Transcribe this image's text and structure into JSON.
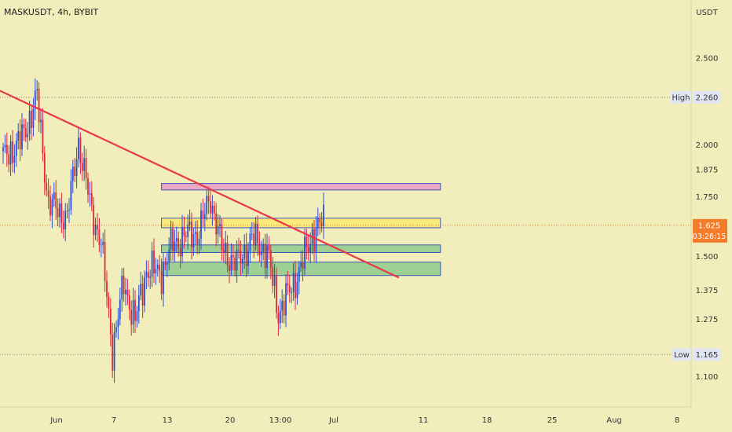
{
  "header": {
    "symbol_title": "MASKUSDT, 4h, BYBIT"
  },
  "colors": {
    "background": "#f1eebb",
    "candle_up": "#2a4fd6",
    "candle_down": "#e0283a",
    "trendline": "#e8384a",
    "resistance_zone": "#e9a1c4",
    "supply_zone": "#fbe877",
    "demand_zone": "#95cc8f",
    "zone_border": "#3b58b8",
    "current_price_badge": "#f57c2a",
    "label_box": "#e2e6f3"
  },
  "chart_data": {
    "type": "candlestick",
    "title": "MASKUSDT, 4h, BYBIT",
    "currency_label": "USDT",
    "y_scale": "log",
    "grid": false,
    "x_tick_labels": [
      "Jun",
      "7",
      "13",
      "20",
      "13:00",
      "Jul",
      "11",
      "18",
      "25",
      "Aug",
      "8"
    ],
    "y_tick_labels": [
      "2.500",
      "2.000",
      "1.875",
      "1.750",
      "1.500",
      "1.375",
      "1.275",
      "1.100"
    ],
    "y_ticks": [
      2.5,
      2.0,
      1.875,
      1.75,
      1.5,
      1.375,
      1.275,
      1.1
    ],
    "ylim": [
      1.06,
      2.8
    ],
    "high": {
      "label": "High",
      "value": "2.260",
      "price": 2.26
    },
    "low": {
      "label": "Low",
      "value": "1.165",
      "price": 1.165
    },
    "current_price": {
      "value": "1.625",
      "countdown": "03:26:15",
      "price": 1.625
    },
    "anchor_points": [
      {
        "t": 0,
        "price": 1.93
      },
      {
        "t": 10,
        "price": 2.03
      },
      {
        "t": 18,
        "price": 2.26
      },
      {
        "t": 24,
        "price": 1.72
      },
      {
        "t": 34,
        "price": 1.66
      },
      {
        "t": 40,
        "price": 2.02
      },
      {
        "t": 46,
        "price": 1.72
      },
      {
        "t": 52,
        "price": 1.55
      },
      {
        "t": 58,
        "price": 1.18
      },
      {
        "t": 64,
        "price": 1.4
      },
      {
        "t": 70,
        "price": 1.27
      },
      {
        "t": 76,
        "price": 1.45
      },
      {
        "t": 84,
        "price": 1.44
      },
      {
        "t": 90,
        "price": 1.55
      },
      {
        "t": 96,
        "price": 1.58
      },
      {
        "t": 104,
        "price": 1.6
      },
      {
        "t": 110,
        "price": 1.75
      },
      {
        "t": 116,
        "price": 1.53
      },
      {
        "t": 124,
        "price": 1.47
      },
      {
        "t": 132,
        "price": 1.57
      },
      {
        "t": 140,
        "price": 1.52
      },
      {
        "t": 146,
        "price": 1.3
      },
      {
        "t": 152,
        "price": 1.37
      },
      {
        "t": 158,
        "price": 1.46
      },
      {
        "t": 164,
        "price": 1.59
      },
      {
        "t": 170,
        "price": 1.64
      }
    ],
    "candle_count": 171,
    "trendline": {
      "start": {
        "t": -17,
        "price": 2.38
      },
      "end": {
        "t": 210,
        "price": 1.42
      }
    },
    "zones": [
      {
        "name": "resistance",
        "t_start": 84,
        "t_end": 232,
        "top": 1.81,
        "bottom": 1.78,
        "color": "#e9a1c4"
      },
      {
        "name": "supply",
        "t_start": 84,
        "t_end": 232,
        "top": 1.655,
        "bottom": 1.615,
        "color": "#fbe877"
      },
      {
        "name": "demand-upper",
        "t_start": 84,
        "t_end": 232,
        "top": 1.545,
        "bottom": 1.515,
        "color": "#95cc8f"
      },
      {
        "name": "demand-lower",
        "t_start": 84,
        "t_end": 232,
        "top": 1.478,
        "bottom": 1.428,
        "color": "#95cc8f"
      }
    ]
  }
}
